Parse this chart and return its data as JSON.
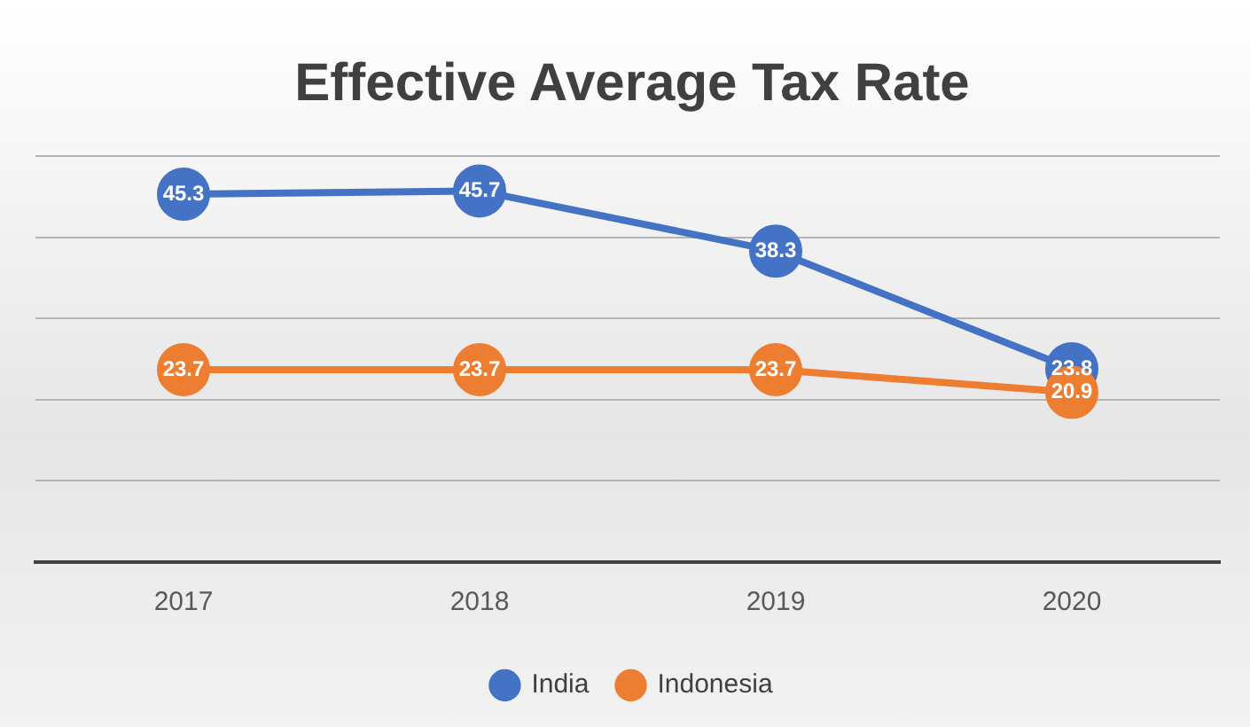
{
  "chart_data": {
    "type": "line",
    "title": "Effective Average Tax Rate",
    "categories": [
      "2017",
      "2018",
      "2019",
      "2020"
    ],
    "series": [
      {
        "name": "India",
        "color": "#4472c4",
        "values": [
          45.3,
          45.7,
          38.3,
          23.8
        ]
      },
      {
        "name": "Indonesia",
        "color": "#ed7d31",
        "values": [
          23.7,
          23.7,
          23.7,
          20.9
        ]
      }
    ],
    "ylim": [
      0,
      50
    ],
    "yticks": [
      {
        "value": 0,
        "label": null
      },
      {
        "value": 10,
        "label": null
      },
      {
        "value": 20,
        "label": null
      },
      {
        "value": 30,
        "label": null
      },
      {
        "value": 40,
        "label": null
      },
      {
        "value": 50,
        "label": null
      }
    ],
    "tick_labels": "x",
    "grid": "y",
    "legend": "bottom",
    "marker": "circle",
    "line_style": "solid",
    "data_labels": true
  }
}
